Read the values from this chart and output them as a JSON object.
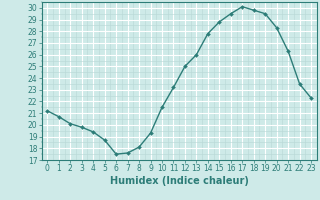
{
  "xlabel": "Humidex (Indice chaleur)",
  "ylabel": "",
  "x_values": [
    0,
    1,
    2,
    3,
    4,
    5,
    6,
    7,
    8,
    9,
    10,
    11,
    12,
    13,
    14,
    15,
    16,
    17,
    18,
    19,
    20,
    21,
    22,
    23
  ],
  "y_values": [
    21.2,
    20.7,
    20.1,
    19.8,
    19.4,
    18.7,
    17.5,
    17.6,
    18.1,
    19.3,
    21.5,
    23.2,
    25.0,
    26.0,
    27.8,
    28.8,
    29.5,
    30.1,
    29.8,
    29.5,
    28.3,
    26.3,
    23.5,
    22.3
  ],
  "line_color": "#2d7d78",
  "marker_color": "#2d7d78",
  "bg_color": "#ceeae8",
  "grid_major_color": "#ffffff",
  "grid_minor_color": "#b8d8d6",
  "xlim": [
    -0.5,
    23.5
  ],
  "ylim": [
    17,
    30.5
  ],
  "yticks": [
    17,
    18,
    19,
    20,
    21,
    22,
    23,
    24,
    25,
    26,
    27,
    28,
    29,
    30
  ],
  "xticks": [
    0,
    1,
    2,
    3,
    4,
    5,
    6,
    7,
    8,
    9,
    10,
    11,
    12,
    13,
    14,
    15,
    16,
    17,
    18,
    19,
    20,
    21,
    22,
    23
  ],
  "tick_fontsize": 5.5,
  "xlabel_fontsize": 7.0,
  "line_width": 1.0,
  "marker_size": 2.0
}
